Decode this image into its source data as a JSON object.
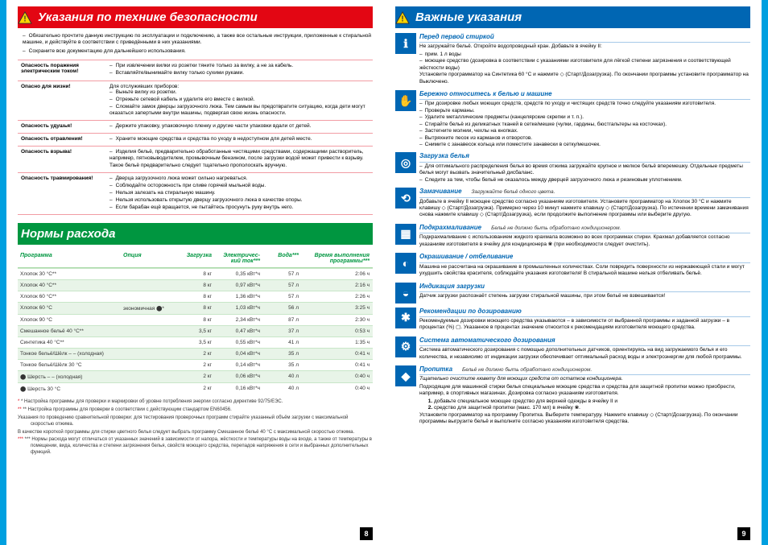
{
  "left": {
    "safety_title": "Указания по технике безопасности",
    "intro1": "Обязательно прочтите данную инструкцию по эксплуатации и подключению, а также все остальные инструкции, приложенные к стиральной машине, и действуйте в соответствии с приведёнными в них указаниями.",
    "intro2": "Сохраните всю документацию для дальнейшего использования.",
    "rows": [
      {
        "h": "Опасность поражения электрическим током!",
        "items": [
          "При извлечении вилки из розетки тяните только за вилку, а не за кабель.",
          "Вставляйте/вынимайте вилку только сухими руками."
        ]
      },
      {
        "h": "Опасно для жизни!",
        "pre": "Для отслуживших приборов:",
        "items": [
          "Выньте вилку из розетки.",
          "Отрежьте сетевой кабель и удалите его вместе с вилкой.",
          "Сломайте замок дверцы загрузочного люка. Тем самым вы предотвратите ситуацию, когда дети могут оказаться запертыми внутри машины, подвергая свою жизнь опасности."
        ]
      },
      {
        "h": "Опасность удушья!",
        "items": [
          "Держите упаковку, упаковочную пленку и другие части упаковки вдали от детей."
        ]
      },
      {
        "h": "Опасность отравления!",
        "items": [
          "Храните моющие средства и средства по уходу в недоступном для детей месте."
        ]
      },
      {
        "h": "Опасность взрыва!",
        "items": [
          "Изделия бельё, предварительно обработанные чистящими средствами, содержащими растворитель, например, пятновыводителем, промывочным бензином, после загрузки водой может привести к взрыву. Такое бельё предварительно следует тщательно прополоскать вручную."
        ]
      },
      {
        "h": "Опасность травмирования!",
        "items": [
          "Дверца загрузочного люка может сильно нагреваться.",
          "Соблюдайте осторожность при сливе горячей мыльной воды.",
          "Нельзя залезать на стиральную машину.",
          "Нельзя использовать открытую дверцу загрузочного люка в качестве опоры.",
          "Если барабан ещё вращается, не пытайтесь просунуть руку внутрь него."
        ]
      }
    ],
    "consume_title": "Нормы расхода",
    "thead": {
      "c0": "Программа",
      "c1": "Опция",
      "c2": "Загрузка",
      "c3": "Электричес-кий ток***",
      "c4": "Вода***",
      "c5": "Время выполнения программы***"
    },
    "data": [
      {
        "c0": "Хлопок 30 °C**",
        "c1": "",
        "c2": "8 кг",
        "c3": "0,35 кВт*ч",
        "c4": "57 л",
        "c5": "2:06 ч"
      },
      {
        "c0": "Хлопок 40 °C**",
        "c1": "",
        "c2": "8 кг",
        "c3": "0,97 кВт*ч",
        "c4": "57 л",
        "c5": "2:16 ч"
      },
      {
        "c0": "Хлопок 60 °C**",
        "c1": "",
        "c2": "8 кг",
        "c3": "1,36 кВт*ч",
        "c4": "57 л",
        "c5": "2:26 ч"
      },
      {
        "c0": "Хлопок 60 °C",
        "c1": "экономичная ⬤*",
        "c2": "8 кг",
        "c3": "1,03 кВт*ч",
        "c4": "56 л",
        "c5": "3:25 ч"
      },
      {
        "c0": "Хлопок 90 °C",
        "c1": "",
        "c2": "8 кг",
        "c3": "2,34 кВт*ч",
        "c4": "87 л",
        "c5": "2:30 ч"
      },
      {
        "c0": "Смешанное бельё 40 °C**",
        "c1": "",
        "c2": "3,5 кг",
        "c3": "0,47 кВт*ч",
        "c4": "37 л",
        "c5": "0:53 ч"
      },
      {
        "c0": "Синтетика 40 °C**",
        "c1": "",
        "c2": "3,5 кг",
        "c3": "0,55 кВт*ч",
        "c4": "41 л",
        "c5": "1:35 ч"
      },
      {
        "c0": "Тонкое бельё/Шёлк – – (холодная)",
        "c1": "",
        "c2": "2 кг",
        "c3": "0,04 кВт*ч",
        "c4": "35 л",
        "c5": "0:41 ч"
      },
      {
        "c0": "Тонкое бельё/Шёлк 30 °C",
        "c1": "",
        "c2": "2 кг",
        "c3": "0,14 кВт*ч",
        "c4": "35 л",
        "c5": "0:41 ч"
      },
      {
        "c0": "⬤ Шерсть – – (холодная)",
        "c1": "",
        "c2": "2 кг",
        "c3": "0,06 кВт*ч",
        "c4": "40 л",
        "c5": "0:40 ч"
      },
      {
        "c0": "⬤ Шерсть 30 °C",
        "c1": "",
        "c2": "2 кг",
        "c3": "0,16 кВт*ч",
        "c4": "40 л",
        "c5": "0:40 ч"
      }
    ],
    "fn1": "*    Настройка программы для проверки и маркировки об уровне потребления энергии согласно директиве 92/75/EЭС.",
    "fn2": "**   Настройка программы для проверки в соответствии с действующим стандартом EN60456.",
    "fn2b": "Указания по проведению сравнительной проверки: для тестирования проверочных программ стирайте указанный объём загрузки с максимальной скоростью отжима.",
    "fn2c": "В качестве короткой программы для стирки цветного белья следует выбрать программу Смешанное бельё 40 °C с максимальной скоростью отжима.",
    "fn3": "***  Нормы расхода могут отличаться от указанных значений в зависимости от напора, жёсткости и температуры воды на входе, а также от температуры в помещении, вида, количества и степени загрязнения белья, свойств моющего средства, перепадов напряжения в сети и выбранных дополнительных функций.",
    "page": "8"
  },
  "right": {
    "title": "Важные указания",
    "sections": [
      {
        "icon": "ℹ",
        "title": "Перед первой стиркой",
        "body": "Не загружайте бельё. Откройте водопроводный кран. Добавьте в ячейку II:",
        "items": [
          "прим. 1 л воды",
          "моющее средство (дозировка в соответствии с указаниями изготовителя для лёгкой степени загрязнения и соответствующей жёсткости воды)"
        ],
        "post": "Установите программатор на Синтетика 60 °C и нажмите ◇ (Старт/Дозагрузка). По окончании программы установите программатор на Выключено."
      },
      {
        "icon": "✋",
        "title": "Бережно относитесь к белью и машине",
        "items": [
          "При дозировке любых моющих средств, средств по уходу и чистящих средств точно следуйте указаниям изготовителя.",
          "Проверьте карманы.",
          "Удалите металлические предметы (канцелярские скрепки и т. п.).",
          "Стирайте бельё из деликатных тканей в сетке/мешке (чулки, гардины, бюстгальтеры на косточках).",
          "Застегните молнии, чехлы на кнопках.",
          "Вытряхните песок из карманов и отворотов.",
          "Снимите с занавесок кольца или поместите занавески в сетку/мешочек."
        ]
      },
      {
        "icon": "◎",
        "title": "Загрузка белья",
        "items": [
          "Для оптимального распределения белья во время отжима загружайте крупное и мелкое бельё вперемешку. Отдельные предметы белья могут вызвать значительный дисбаланс.",
          "Следите за тем, чтобы бельё не оказалось между дверцей загрузочного люка и резиновым уплотнением."
        ]
      },
      {
        "icon": "⟲",
        "title": "Замачивание",
        "note": "Загружайте бельё одного цвета.",
        "body": "Добавьте в ячейку II моющее средство согласно указаниям изготовителя. Установите программатор на Хлопок 30 °C и нажмите клавишу ◇ (Старт/Дозагрузка). Примерно через 10 минут нажмите клавишу ◇ (Старт/Дозагрузка). По истечении времени замачивания снова нажмите клавишу ◇ (Старт/Дозагрузка), если продолжите выполнение программы или выберите другую."
      },
      {
        "icon": "▦",
        "title": "Подкрахмаливание",
        "note": "Бельё не должно быть обработано кондиционером.",
        "body": "Подкрахмаливание с использованием жидкого крахмала возможно во всех программах стирки. Крахмал добавляется согласно указаниям изготовителя в ячейку для кондиционера ❀ (при необходимости следует очистить)."
      },
      {
        "icon": "◐",
        "title": "Окрашивание / отбеливание",
        "body": "Машина не рассчитана на окрашивание в промышленных количествах. Соли повредить поверхности из нержавеющей стали и могут ухудшить свойства красителя, соблюдайте указания изготовителя! В стиральной машине нельзя отбеливать бельё."
      },
      {
        "icon": "◒",
        "title": "Индикация загрузки",
        "body": "Датчик загрузки распознаёт степень загрузки стиральной машины, при этом бельё не взвешивается!"
      },
      {
        "icon": "✱",
        "title": "Рекомендации по дозированию",
        "body": "Рекомендуемые дозировки моющего средства указываются – в зависимости от выбранной программы и заданной загрузки – в процентах (%) ▢. Указанное в процентах значение относится к рекомендациям изготовителя моющего средства."
      },
      {
        "icon": "⚙",
        "title": "Система автоматического дозирования",
        "body": "Система автоматического дозирования с помощью дополнительных датчиков, ориентируясь на вид загружаемого белья и его количества, и независимо от индикации загрузки обеспечивает оптимальный расход воды и электроэнергии для любой программы."
      },
      {
        "icon": "◆",
        "title": "Пропитка",
        "note": "Бельё не должно быть обработано кондиционером.",
        "pre": "Тщательно очистите кювету для моющих средств от остатков кондиционера.",
        "body": "Подходящие для машинной стирки белья специальные моющие средства и средства для защитной пропитки можно приобрести, например, в спортивных магазинах. Дозировка согласно указаниям изготовителя.",
        "ol": [
          "добавьте специальное моющее средство для верхней одежды в ячейку II и",
          "средство для защитной пропитки (макс. 170 мл) в ячейку ❀."
        ],
        "post": "Установите программатор на программу Пропитка. Выберите температуру. Нажмите клавишу ◇ (Старт/Дозагрузка). По окончании программы выгрузите бельё и выполните согласно указаниям изготовителя средства."
      }
    ],
    "page": "9"
  }
}
